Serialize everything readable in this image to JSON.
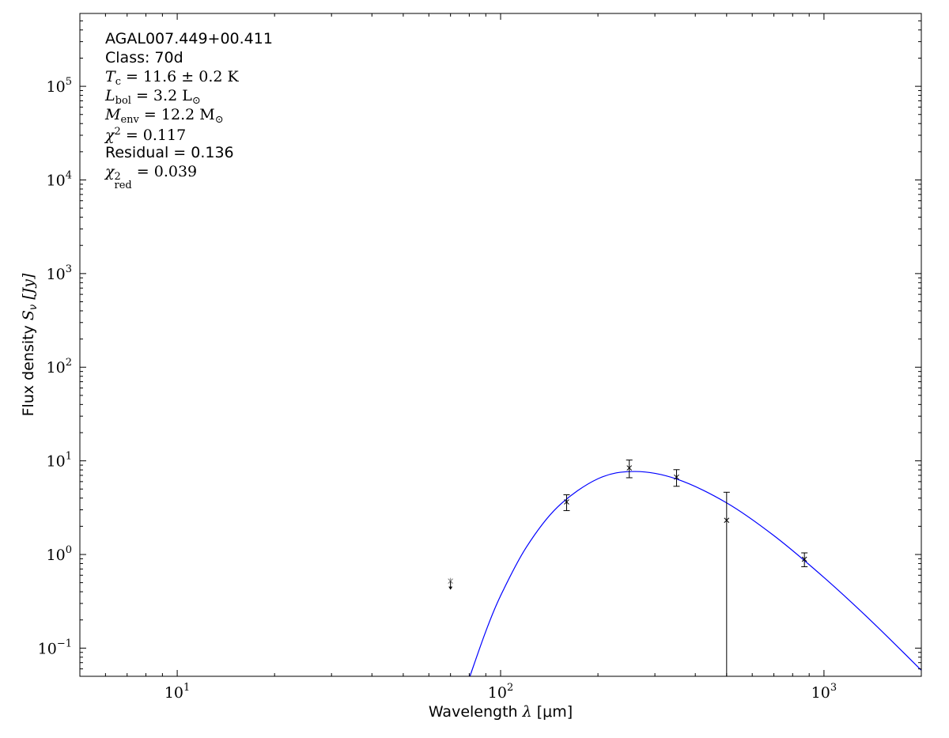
{
  "chart_data": {
    "type": "scatter",
    "xlabel": "Wavelength λ [μm]",
    "ylabel": "Flux density S_ν [Jy]",
    "xlabel_parts": {
      "pre": "Wavelength ",
      "sym": "λ",
      "post": " [μm]"
    },
    "ylabel_parts": {
      "pre": "Flux density ",
      "sym": "S",
      "sub": "ν",
      "post": " [Jy]"
    },
    "x_scale": "log",
    "y_scale": "log",
    "xlim": [
      5,
      2000
    ],
    "ylim": [
      0.05,
      600000
    ],
    "x_ticks": [
      10,
      100,
      1000
    ],
    "y_ticks": [
      0.1,
      1,
      10,
      100,
      1000,
      10000,
      100000
    ],
    "grid": false,
    "colors": {
      "model": "#0000ff",
      "points": "#000000",
      "upper_limit": "#808080"
    },
    "points": [
      {
        "x": 160,
        "y": 3.64,
        "err": 0.7
      },
      {
        "x": 250,
        "y": 8.4,
        "err": 1.8
      },
      {
        "x": 350,
        "y": 6.7,
        "err": 1.35
      },
      {
        "x": 500,
        "y": 2.32,
        "err": 2.3
      },
      {
        "x": 870,
        "y": 0.89,
        "err": 0.15
      }
    ],
    "upper_limits": [
      {
        "x": 70,
        "y": 0.52
      }
    ],
    "model": {
      "x": [
        78,
        80,
        90,
        100,
        120,
        150,
        200,
        260,
        350,
        500,
        700,
        1000,
        1400,
        2000
      ],
      "y": [
        0.037,
        0.0477,
        0.151,
        0.363,
        1.19,
        3.21,
        6.44,
        7.7,
        6.4,
        3.56,
        1.59,
        0.568,
        0.195,
        0.058
      ]
    },
    "annotations": {
      "source": "AGAL007.449+00.411",
      "class": "Class: 70d",
      "tc": {
        "sym": "T",
        "sub": "c",
        "rest": " = 11.6 ± 0.2 K"
      },
      "lbol": {
        "sym": "L",
        "sub": "bol",
        "rest": " = 3.2 L",
        "rest_sub": "⊙"
      },
      "menv": {
        "sym": "M",
        "sub": "env",
        "rest": " = 12.2 M",
        "rest_sub": "⊙"
      },
      "chi2": {
        "sym": "χ",
        "sup": "2",
        "rest": " = 0.117"
      },
      "residual": "Residual = 0.136",
      "chi2red": {
        "sym": "χ",
        "sup": "2",
        "sub": "red",
        "rest": " = 0.039"
      }
    }
  }
}
